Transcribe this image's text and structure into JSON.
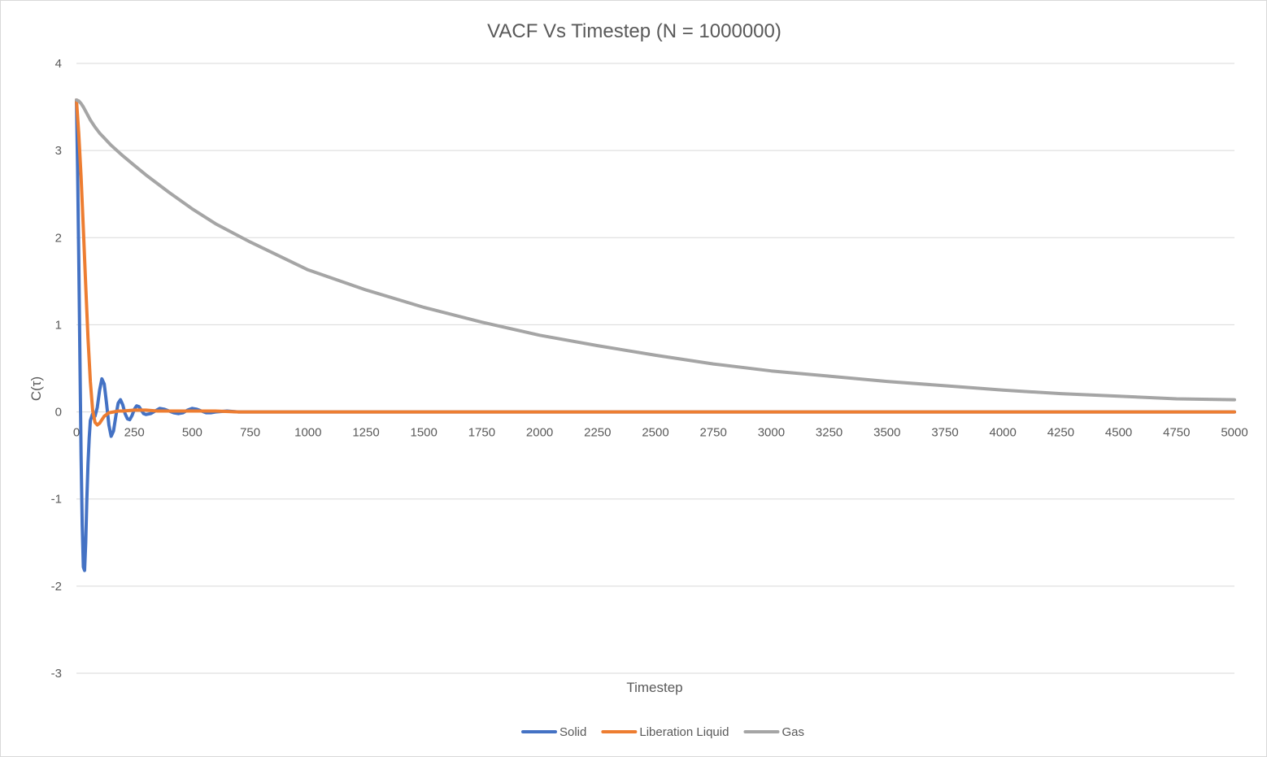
{
  "chart_data": {
    "type": "line",
    "title": "VACF Vs Timestep (N = 1000000)",
    "xlabel": "Timestep",
    "ylabel": "C(τ)",
    "xlim": [
      0,
      5000
    ],
    "ylim": [
      -3,
      4
    ],
    "xticks": [
      0,
      250,
      500,
      750,
      1000,
      1250,
      1500,
      1750,
      2000,
      2250,
      2500,
      2750,
      3000,
      3250,
      3500,
      3750,
      4000,
      4250,
      4500,
      4750,
      5000
    ],
    "yticks": [
      -3,
      -2,
      -1,
      0,
      1,
      2,
      3,
      4
    ],
    "xtick_labels": [
      "0",
      "250",
      "500",
      "750",
      "1000",
      "1250",
      "1500",
      "1750",
      "2000",
      "2250",
      "2500",
      "2750",
      "3000",
      "3250",
      "3500",
      "3750",
      "4000",
      "4250",
      "4500",
      "4750",
      "5000"
    ],
    "ytick_labels": [
      "-3",
      "-2",
      "-1",
      "0",
      "1",
      "2",
      "3",
      "4"
    ],
    "grid": true,
    "legend_position": "bottom",
    "series": [
      {
        "name": "Solid",
        "color": "#4472c4",
        "x": [
          0,
          5,
          10,
          15,
          20,
          25,
          30,
          35,
          40,
          45,
          50,
          55,
          60,
          70,
          80,
          90,
          100,
          110,
          120,
          130,
          140,
          150,
          160,
          170,
          180,
          190,
          200,
          210,
          220,
          230,
          240,
          250,
          260,
          270,
          280,
          290,
          300,
          320,
          340,
          360,
          380,
          400,
          420,
          440,
          460,
          480,
          500,
          520,
          540,
          560,
          580,
          600,
          650,
          700,
          800,
          1000,
          1500,
          2000,
          2500,
          3000,
          3500,
          4000,
          4500,
          5000
        ],
        "values": [
          3.58,
          2.8,
          1.8,
          0.6,
          -0.5,
          -1.3,
          -1.78,
          -1.82,
          -1.5,
          -1.0,
          -0.6,
          -0.3,
          -0.1,
          -0.02,
          -0.05,
          0.05,
          0.25,
          0.38,
          0.32,
          0.1,
          -0.15,
          -0.28,
          -0.22,
          -0.05,
          0.1,
          0.14,
          0.08,
          -0.02,
          -0.08,
          -0.09,
          -0.04,
          0.03,
          0.07,
          0.06,
          0.02,
          -0.02,
          -0.03,
          -0.02,
          0.01,
          0.04,
          0.03,
          0.01,
          -0.01,
          -0.02,
          -0.01,
          0.02,
          0.04,
          0.03,
          0.01,
          -0.01,
          -0.01,
          0.0,
          0.01,
          0.0,
          0.0,
          0.0,
          0.0,
          0.0,
          0.0,
          0.0,
          0.0,
          0.0,
          0.0,
          0.0
        ]
      },
      {
        "name": "Liberation Liquid",
        "color": "#ed7d31",
        "x": [
          0,
          10,
          20,
          30,
          40,
          50,
          60,
          70,
          80,
          90,
          100,
          110,
          120,
          140,
          160,
          180,
          200,
          250,
          300,
          350,
          400,
          500,
          600,
          700,
          1000,
          1500,
          2000,
          2500,
          3000,
          3500,
          4000,
          4500,
          5000
        ],
        "values": [
          3.58,
          3.2,
          2.7,
          2.1,
          1.45,
          0.85,
          0.35,
          0.02,
          -0.12,
          -0.15,
          -0.13,
          -0.09,
          -0.05,
          -0.01,
          0.0,
          0.01,
          0.01,
          0.02,
          0.02,
          0.01,
          0.01,
          0.01,
          0.01,
          0.0,
          0.0,
          0.0,
          0.0,
          0.0,
          0.0,
          0.0,
          0.0,
          0.0,
          0.0
        ]
      },
      {
        "name": "Gas",
        "color": "#a5a5a5",
        "x": [
          0,
          10,
          20,
          30,
          40,
          60,
          80,
          100,
          150,
          200,
          250,
          300,
          400,
          500,
          600,
          750,
          1000,
          1250,
          1500,
          1750,
          2000,
          2250,
          2500,
          2750,
          3000,
          3250,
          3500,
          3750,
          4000,
          4250,
          4500,
          4750,
          5000
        ],
        "values": [
          3.58,
          3.57,
          3.54,
          3.5,
          3.45,
          3.35,
          3.27,
          3.2,
          3.06,
          2.94,
          2.83,
          2.72,
          2.52,
          2.33,
          2.16,
          1.95,
          1.63,
          1.4,
          1.2,
          1.03,
          0.88,
          0.76,
          0.65,
          0.55,
          0.47,
          0.41,
          0.35,
          0.3,
          0.25,
          0.21,
          0.18,
          0.15,
          0.14
        ]
      }
    ]
  }
}
